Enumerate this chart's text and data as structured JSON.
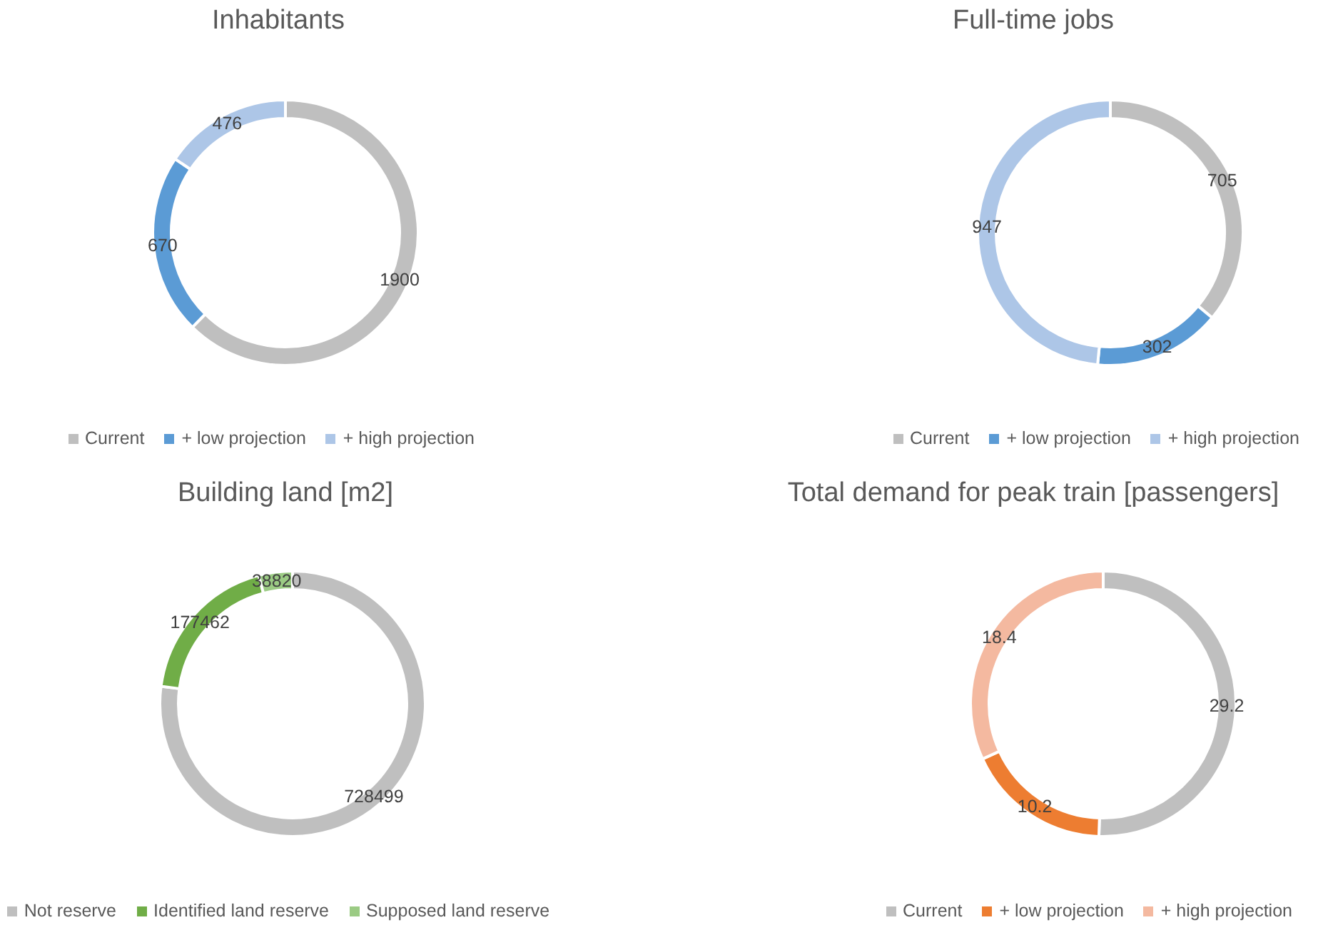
{
  "chart_data": [
    {
      "type": "donut",
      "title": "Inhabitants",
      "categories": [
        "Current",
        "+ low projection",
        "+ high projection"
      ],
      "values": [
        1900,
        670,
        476
      ],
      "colors": [
        "#bfbfbf",
        "#5b9bd5",
        "#adc6e7"
      ],
      "data_labels": true,
      "legend": "bottom"
    },
    {
      "type": "donut",
      "title": "Full-time jobs",
      "categories": [
        "Current",
        "+ low projection",
        "+ high projection"
      ],
      "values": [
        705,
        302,
        947
      ],
      "colors": [
        "#bfbfbf",
        "#5b9bd5",
        "#adc6e7"
      ],
      "data_labels": true,
      "legend": "bottom"
    },
    {
      "type": "donut",
      "title": "Building land [m2]",
      "categories": [
        "Not reserve",
        "Identified land reserve",
        "Supposed land reserve"
      ],
      "values": [
        728499,
        177462,
        38820
      ],
      "colors": [
        "#bfbfbf",
        "#70ad47",
        "#9bcb84"
      ],
      "data_labels": true,
      "legend": "bottom"
    },
    {
      "type": "donut",
      "title": "Total demand for peak train [passengers]",
      "categories": [
        "Current",
        "+ low projection",
        "+ high projection"
      ],
      "values": [
        29.2,
        10.2,
        18.4
      ],
      "colors": [
        "#bfbfbf",
        "#ed7d31",
        "#f4b9a0"
      ],
      "data_labels": true,
      "legend": "bottom"
    }
  ]
}
